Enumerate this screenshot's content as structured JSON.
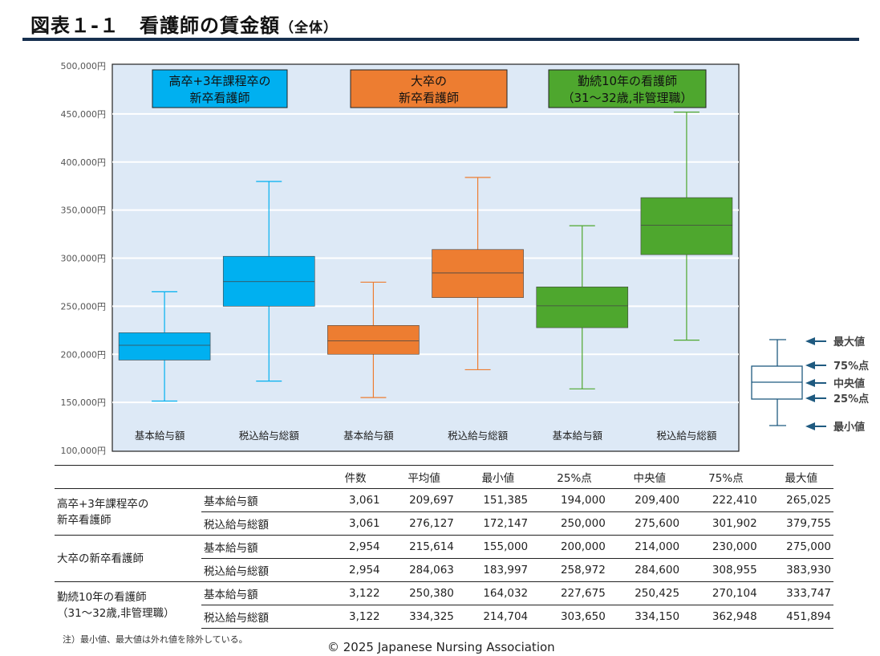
{
  "title": "図表１-１　看護師の賃金額",
  "title_suffix": "（全体）",
  "chart_data": {
    "type": "box",
    "ylim": [
      100000,
      500000
    ],
    "yticks": [
      100000,
      150000,
      200000,
      250000,
      300000,
      350000,
      400000,
      450000,
      500000
    ],
    "ytick_labels": [
      "100,000円",
      "150,000円",
      "200,000円",
      "250,000円",
      "300,000円",
      "350,000円",
      "400,000円",
      "450,000円",
      "500,000円"
    ],
    "grid": true,
    "groups": [
      {
        "label": "高卒+3年課程卒の\n新卒看護師",
        "color": "#00B0F0"
      },
      {
        "label": "大卒の\n新卒看護師",
        "color": "#ED7D31"
      },
      {
        "label": "勤続10年の看護師\n（31～32歳,非管理職）",
        "color": "#4EA72E"
      }
    ],
    "boxes": [
      {
        "group": 0,
        "category": "基本給与額",
        "min": 151385,
        "q1": 194000,
        "median": 209400,
        "q3": 222410,
        "max": 265025
      },
      {
        "group": 0,
        "category": "税込給与総額",
        "min": 172147,
        "q1": 250000,
        "median": 275600,
        "q3": 301902,
        "max": 379755
      },
      {
        "group": 1,
        "category": "基本給与額",
        "min": 155000,
        "q1": 200000,
        "median": 214000,
        "q3": 230000,
        "max": 275000
      },
      {
        "group": 1,
        "category": "税込給与総額",
        "min": 183997,
        "q1": 258972,
        "median": 284600,
        "q3": 308955,
        "max": 383930
      },
      {
        "group": 2,
        "category": "基本給与額",
        "min": 164032,
        "q1": 227675,
        "median": 250425,
        "q3": 270104,
        "max": 333747
      },
      {
        "group": 2,
        "category": "税込給与総額",
        "min": 214704,
        "q1": 303650,
        "median": 334150,
        "q3": 362948,
        "max": 451894
      }
    ],
    "legend": {
      "placement": "right",
      "items": [
        "最大値",
        "75%点",
        "中央値",
        "25%点",
        "最小値"
      ]
    },
    "plot_background": "#DDE9F6"
  },
  "table": {
    "headers": [
      "件数",
      "平均値",
      "最小値",
      "25%点",
      "中央値",
      "75%点",
      "最大値"
    ],
    "groups": [
      {
        "label": "高卒+3年課程卒の\n新卒看護師",
        "rows": [
          {
            "type": "基本給与額",
            "values": [
              "3,061",
              "209,697",
              "151,385",
              "194,000",
              "209,400",
              "222,410",
              "265,025"
            ]
          },
          {
            "type": "税込給与総額",
            "values": [
              "3,061",
              "276,127",
              "172,147",
              "250,000",
              "275,600",
              "301,902",
              "379,755"
            ]
          }
        ]
      },
      {
        "label": "大卒の新卒看護師",
        "rows": [
          {
            "type": "基本給与額",
            "values": [
              "2,954",
              "215,614",
              "155,000",
              "200,000",
              "214,000",
              "230,000",
              "275,000"
            ]
          },
          {
            "type": "税込給与総額",
            "values": [
              "2,954",
              "284,063",
              "183,997",
              "258,972",
              "284,600",
              "308,955",
              "383,930"
            ]
          }
        ]
      },
      {
        "label": "勤続10年の看護師\n（31～32歳,非管理職）",
        "rows": [
          {
            "type": "基本給与額",
            "values": [
              "3,122",
              "250,380",
              "164,032",
              "227,675",
              "250,425",
              "270,104",
              "333,747"
            ]
          },
          {
            "type": "税込給与総額",
            "values": [
              "3,122",
              "334,325",
              "214,704",
              "303,650",
              "334,150",
              "362,948",
              "451,894"
            ]
          }
        ]
      }
    ]
  },
  "note": "注）最小値、最大値は外れ値を除外している。",
  "copyright": "© 2025 Japanese Nursing Association"
}
